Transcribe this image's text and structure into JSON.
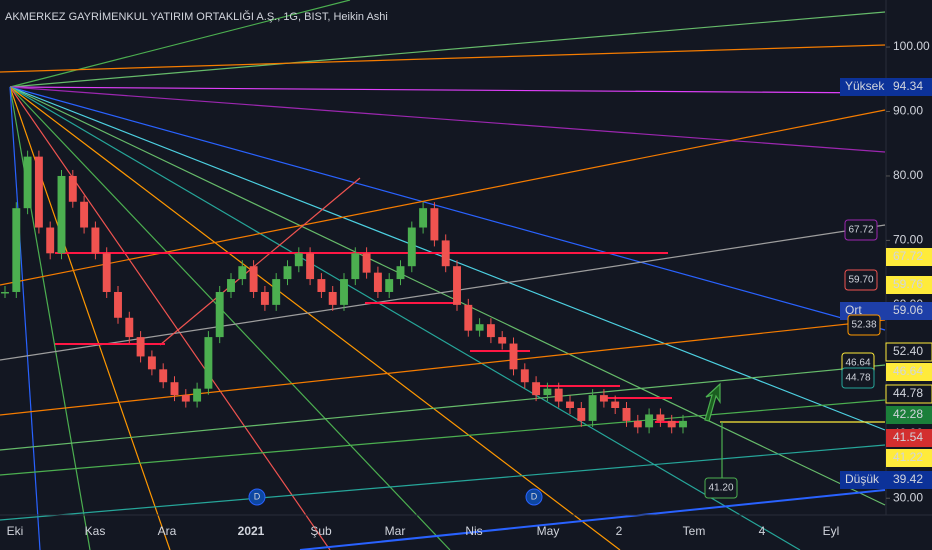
{
  "chart_data": {
    "type": "candlestick",
    "title": "AKMERKEZ GAYRİMENKUL YATIRIM ORTAKLIĞI A.Ş., 1G, BIST, Heikin Ashi",
    "values": [
      62,
      75,
      83,
      72,
      68,
      80,
      76,
      72,
      68,
      62,
      58,
      55,
      52,
      50,
      48,
      46,
      45,
      47,
      55,
      62,
      64,
      66,
      62,
      60,
      64,
      66,
      68,
      64,
      62,
      60,
      64,
      68,
      65,
      62,
      64,
      66,
      72,
      75,
      70,
      66,
      60,
      56,
      57,
      55,
      54,
      50,
      48,
      46,
      47,
      45,
      44,
      42,
      46,
      45,
      44,
      42,
      41,
      43,
      42,
      41,
      42
    ],
    "up_color": "#4caf50",
    "down_color": "#ef5350",
    "ylim": [
      27.4,
      107.3
    ],
    "yticks": [
      {
        "value": 30,
        "label": "30.00"
      },
      {
        "value": 40,
        "label": "40.00"
      },
      {
        "value": 50,
        "label": "50.00"
      },
      {
        "value": 60,
        "label": "60.00"
      },
      {
        "value": 70,
        "label": "70.00"
      },
      {
        "value": 80,
        "label": "80.00"
      },
      {
        "value": 90,
        "label": "90.00"
      },
      {
        "value": 100,
        "label": "100.00"
      }
    ],
    "x_tick_labels": [
      "Eki",
      "Kas",
      "Ara",
      "2021",
      "Şub",
      "Mar",
      "Nis",
      "May",
      "2",
      "Tem",
      "4",
      "Eyl"
    ],
    "price_labels": [
      {
        "tag": "Yüksek",
        "text": "94.34"
      },
      {
        "text": "67.72"
      },
      {
        "text": "59.76"
      },
      {
        "tag": "Ort",
        "text": "59.06"
      },
      {
        "text": "52.40"
      },
      {
        "text": "46.64"
      },
      {
        "text": "44.78"
      },
      {
        "text": "42.28"
      },
      {
        "text": "41.54"
      },
      {
        "text": "41.22"
      },
      {
        "tag": "Düşük",
        "text": "39.42"
      }
    ],
    "annotations": [
      "67.72",
      "59.70",
      "52.38",
      "46.64",
      "44.78",
      "41.20"
    ],
    "markers": [
      "D",
      "D"
    ]
  }
}
